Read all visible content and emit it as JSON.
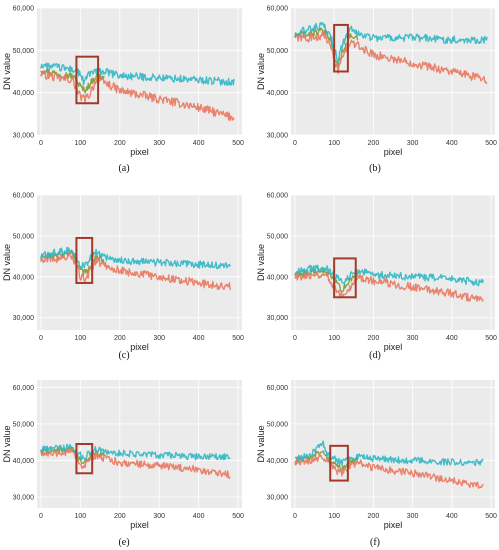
{
  "figure": {
    "colors": {
      "background": "#ebebeb",
      "grid": "#ffffff",
      "series": [
        "#2fb7c4",
        "#e9785f",
        "#7a9a3a"
      ],
      "highlight_box": "#a23a2a"
    }
  },
  "chart_data": [
    {
      "panel_label": "(a)",
      "type": "line",
      "xlabel": "pixel",
      "ylabel": "DN value",
      "xlim": [
        -10,
        510
      ],
      "ylim": [
        30000,
        60000
      ],
      "xticks": [
        0,
        100,
        200,
        300,
        400,
        500
      ],
      "yticks": [
        "30,000",
        "40,000",
        "50,000",
        "60,000"
      ],
      "grid": true,
      "series": [
        {
          "x": [
            0,
            40,
            80,
            100,
            110,
            120,
            140,
            160,
            200,
            300,
            400,
            490
          ],
          "values": [
            46500,
            46000,
            45500,
            44500,
            42000,
            44500,
            45000,
            45000,
            44000,
            43500,
            43000,
            42500
          ]
        },
        {
          "x": [
            0,
            40,
            80,
            100,
            110,
            120,
            140,
            160,
            200,
            300,
            400,
            490
          ],
          "values": [
            44500,
            43500,
            43000,
            39000,
            38500,
            39000,
            43000,
            42500,
            40500,
            38500,
            36500,
            34000
          ]
        },
        {
          "x": [
            0,
            40,
            80,
            100,
            110,
            120,
            140,
            160
          ],
          "values": [
            45500,
            44500,
            44000,
            41500,
            40500,
            41500,
            44000,
            43500
          ]
        }
      ],
      "highlight": {
        "x": [
          90,
          145
        ],
        "y": [
          37500,
          48500
        ]
      }
    },
    {
      "panel_label": "(b)",
      "type": "line",
      "xlabel": "pixel",
      "ylabel": "DN value",
      "xlim": [
        -10,
        510
      ],
      "ylim": [
        30000,
        60000
      ],
      "xticks": [
        0,
        100,
        200,
        300,
        400,
        500
      ],
      "yticks": [
        "30,000",
        "40,000",
        "50,000",
        "60,000"
      ],
      "grid": true,
      "series": [
        {
          "x": [
            0,
            40,
            70,
            90,
            100,
            110,
            120,
            140,
            160,
            200,
            300,
            400,
            490
          ],
          "values": [
            54000,
            55000,
            56000,
            54000,
            50000,
            48000,
            51000,
            55000,
            54000,
            53000,
            53000,
            52500,
            52500
          ]
        },
        {
          "x": [
            0,
            40,
            70,
            90,
            100,
            110,
            120,
            140,
            160,
            200,
            300,
            400,
            490
          ],
          "values": [
            53000,
            53000,
            53500,
            52000,
            47000,
            45500,
            48000,
            52000,
            51000,
            49000,
            47000,
            45000,
            43000
          ]
        },
        {
          "x": [
            0,
            40,
            70,
            90,
            100,
            110,
            120,
            140,
            160
          ],
          "values": [
            53500,
            54000,
            54500,
            53000,
            48500,
            46500,
            49500,
            53500,
            52500
          ]
        }
      ],
      "highlight": {
        "x": [
          100,
          135
        ],
        "y": [
          45000,
          56000
        ]
      }
    },
    {
      "panel_label": "(c)",
      "type": "line",
      "xlabel": "pixel",
      "ylabel": "DN value",
      "xlim": [
        -10,
        510
      ],
      "ylim": [
        27000,
        60000
      ],
      "xticks": [
        0,
        100,
        200,
        300,
        400,
        500
      ],
      "yticks": [
        "30,000",
        "40,000",
        "50,000",
        "60,000"
      ],
      "grid": true,
      "series": [
        {
          "x": [
            0,
            40,
            80,
            100,
            110,
            120,
            140,
            160,
            200,
            300,
            400,
            480
          ],
          "values": [
            45000,
            46000,
            46500,
            43000,
            42500,
            44000,
            46000,
            45000,
            44000,
            43500,
            43000,
            42500
          ]
        },
        {
          "x": [
            0,
            40,
            80,
            100,
            110,
            120,
            140,
            160,
            200,
            300,
            400,
            480
          ],
          "values": [
            44500,
            44500,
            45000,
            40000,
            39500,
            40500,
            44000,
            43000,
            41500,
            40000,
            38500,
            37500
          ]
        },
        {
          "x": [
            0,
            40,
            80,
            100,
            110,
            120,
            140,
            160
          ],
          "values": [
            44800,
            45200,
            45800,
            41500,
            41000,
            42000,
            45000,
            44000
          ]
        }
      ],
      "highlight": {
        "x": [
          90,
          130
        ],
        "y": [
          38500,
          49500
        ]
      }
    },
    {
      "panel_label": "(d)",
      "type": "line",
      "xlabel": "pixel",
      "ylabel": "DN value",
      "xlim": [
        -10,
        510
      ],
      "ylim": [
        27000,
        60000
      ],
      "xticks": [
        0,
        100,
        200,
        300,
        400,
        500
      ],
      "yticks": [
        "30,000",
        "40,000",
        "50,000",
        "60,000"
      ],
      "grid": true,
      "series": [
        {
          "x": [
            0,
            40,
            80,
            100,
            120,
            140,
            160,
            200,
            300,
            400,
            480
          ],
          "values": [
            41000,
            42000,
            42000,
            40500,
            38500,
            40500,
            41500,
            40500,
            40000,
            39500,
            38500
          ]
        },
        {
          "x": [
            0,
            40,
            80,
            100,
            120,
            140,
            160,
            200,
            300,
            400,
            480
          ],
          "values": [
            40000,
            40500,
            40500,
            37500,
            35500,
            37500,
            40000,
            39000,
            37500,
            36000,
            34000
          ]
        },
        {
          "x": [
            0,
            40,
            80,
            100,
            120,
            140,
            160
          ],
          "values": [
            40500,
            41200,
            41300,
            39000,
            37000,
            39000,
            40800
          ]
        }
      ],
      "highlight": {
        "x": [
          100,
          155
        ],
        "y": [
          35000,
          44500
        ]
      }
    },
    {
      "panel_label": "(e)",
      "type": "line",
      "xlabel": "pixel",
      "ylabel": "DN value",
      "xlim": [
        -10,
        510
      ],
      "ylim": [
        27000,
        62000
      ],
      "xticks": [
        0,
        100,
        200,
        300,
        400,
        500
      ],
      "yticks": [
        "30,000",
        "40,000",
        "50,000",
        "60,000"
      ],
      "grid": true,
      "series": [
        {
          "x": [
            0,
            40,
            80,
            100,
            110,
            120,
            140,
            160,
            200,
            300,
            400,
            480
          ],
          "values": [
            43000,
            43500,
            43500,
            41500,
            40500,
            42000,
            43000,
            42500,
            42000,
            41500,
            41000,
            41000
          ]
        },
        {
          "x": [
            0,
            40,
            80,
            100,
            110,
            120,
            140,
            160,
            200,
            300,
            400,
            480
          ],
          "values": [
            42000,
            42000,
            42500,
            39000,
            38500,
            39500,
            41500,
            40500,
            39500,
            38500,
            37500,
            36000
          ]
        },
        {
          "x": [
            0,
            40,
            80,
            100,
            110,
            120,
            140,
            160
          ],
          "values": [
            42500,
            42800,
            43000,
            40200,
            39500,
            40800,
            42200,
            41500
          ]
        }
      ],
      "highlight": {
        "x": [
          90,
          130
        ],
        "y": [
          36500,
          44500
        ]
      }
    },
    {
      "panel_label": "(f)",
      "type": "line",
      "xlabel": "pixel",
      "ylabel": "DN value",
      "xlim": [
        -10,
        510
      ],
      "ylim": [
        27000,
        62000
      ],
      "xticks": [
        0,
        100,
        200,
        300,
        400,
        500
      ],
      "yticks": [
        "30,000",
        "40,000",
        "50,000",
        "60,000"
      ],
      "grid": true,
      "series": [
        {
          "x": [
            0,
            40,
            70,
            80,
            100,
            120,
            140,
            160,
            200,
            300,
            400,
            480
          ],
          "values": [
            40500,
            41500,
            45000,
            42000,
            40500,
            39500,
            40500,
            41000,
            40500,
            40000,
            39500,
            39500
          ]
        },
        {
          "x": [
            0,
            40,
            70,
            80,
            100,
            120,
            140,
            160,
            200,
            300,
            400,
            480
          ],
          "values": [
            39500,
            40000,
            41000,
            40000,
            37500,
            36500,
            38500,
            39500,
            38000,
            36500,
            34500,
            33000
          ]
        },
        {
          "x": [
            0,
            40,
            70,
            80,
            100,
            120,
            140,
            160
          ],
          "values": [
            40000,
            40800,
            43000,
            41000,
            39000,
            38000,
            39500,
            40200
          ]
        }
      ],
      "highlight": {
        "x": [
          90,
          135
        ],
        "y": [
          34500,
          44000
        ]
      }
    }
  ]
}
